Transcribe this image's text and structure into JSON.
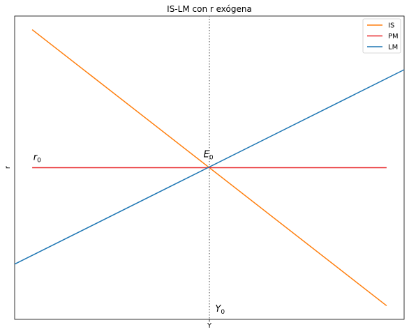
{
  "chart_data": {
    "type": "line",
    "title": "IS-LM con r exógena",
    "xlabel": "Y",
    "ylabel": "r",
    "xlim": [
      0,
      100
    ],
    "ylim": [
      0,
      100
    ],
    "grid": false,
    "legend_position": "top-right",
    "series": [
      {
        "name": "IS",
        "color": "#ff7f0e",
        "x": [
          4.5,
          95.5
        ],
        "y": [
          95.5,
          4.5
        ]
      },
      {
        "name": "PM",
        "color": "#e8282b",
        "x": [
          4.5,
          95.5
        ],
        "y": [
          50,
          50
        ]
      },
      {
        "name": "LM",
        "color": "#1f77b4",
        "x": [
          0,
          100
        ],
        "y": [
          18.2,
          82.3
        ]
      }
    ],
    "vline": {
      "x": 50,
      "color": "#808080",
      "style": "dotted"
    },
    "annotations": [
      {
        "base": "r",
        "sub": "0",
        "x": 4.8,
        "y": 52.5,
        "anchor": "start"
      },
      {
        "base": "E",
        "sub": "0",
        "x": 48.5,
        "y": 53.5,
        "anchor": "start"
      },
      {
        "base": "Y",
        "sub": "0",
        "x": 51.5,
        "y": 2.5,
        "anchor": "start"
      }
    ]
  }
}
